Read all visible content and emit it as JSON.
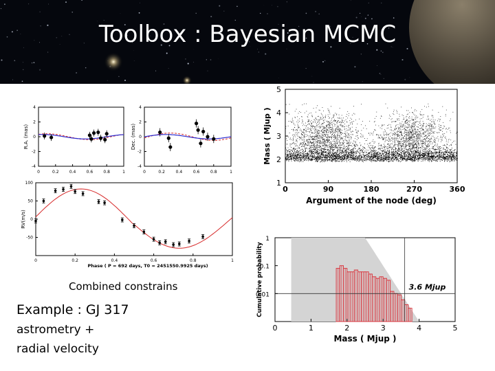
{
  "title": "Toolbox : Bayesian MCMC",
  "captions": {
    "combined": "Combined constrains",
    "example": "Example : GJ 317",
    "astrometry": "astrometry +",
    "radial_velocity": "radial velocity"
  },
  "colors": {
    "banner_bg": "#05070d",
    "fit_red": "#d62828",
    "fit_blue": "#2a2acf",
    "hist_red": "#d9363e",
    "prior_grey": "#d4d4d4"
  },
  "chart_data": [
    {
      "type": "scatter",
      "panel": "ra",
      "ylabel": "R.A. (mas)",
      "xlim": [
        0,
        1
      ],
      "ylim": [
        -4,
        4
      ],
      "xticks": [
        "0",
        "0.2",
        "0.4",
        "0.6",
        "0.8",
        "1"
      ],
      "yticks": [
        "4",
        "2",
        "0",
        "-2",
        "-4"
      ],
      "x": [
        0.07,
        0.15,
        0.6,
        0.62,
        0.65,
        0.7,
        0.73,
        0.78,
        0.8
      ],
      "y": [
        0.1,
        -0.1,
        0.2,
        -0.3,
        0.5,
        0.6,
        -0.2,
        -0.4,
        0.4
      ]
    },
    {
      "type": "scatter",
      "panel": "dec",
      "ylabel": "Dec. (mas)",
      "xlim": [
        0,
        1
      ],
      "ylim": [
        -4,
        4
      ],
      "xticks": [
        "0",
        "0.2",
        "0.4",
        "0.6",
        "0.8",
        "1"
      ],
      "yticks": [
        "4",
        "2",
        "0",
        "-2",
        "-4"
      ],
      "x": [
        0.18,
        0.28,
        0.3,
        0.6,
        0.62,
        0.65,
        0.68,
        0.73,
        0.8
      ],
      "y": [
        0.6,
        -0.2,
        -1.4,
        1.8,
        0.9,
        -0.9,
        0.7,
        0.0,
        -0.3
      ]
    },
    {
      "type": "scatter",
      "panel": "rv",
      "ylabel": "RV(m/s)",
      "xlabel": "Phase ( P = 692 days, T0 = 2451550.9925 days)",
      "xlim": [
        0,
        1
      ],
      "ylim": [
        -100,
        100
      ],
      "xticks": [
        "0",
        "0.2",
        "0.4",
        "0.6",
        "0.8",
        "1"
      ],
      "yticks": [
        "100",
        "50",
        "0",
        "-50"
      ],
      "x": [
        0.0,
        0.04,
        0.1,
        0.14,
        0.18,
        0.2,
        0.24,
        0.32,
        0.35,
        0.44,
        0.5,
        0.55,
        0.6,
        0.63,
        0.66,
        0.7,
        0.73,
        0.78,
        0.85
      ],
      "y": [
        -5,
        50,
        78,
        82,
        90,
        76,
        70,
        48,
        45,
        -2,
        -18,
        -35,
        -55,
        -65,
        -62,
        -70,
        -68,
        -60,
        -48
      ]
    },
    {
      "type": "scatter",
      "panel": "mass_vs_node",
      "ylabel": "Mass ( Mjup )",
      "xlabel": "Argument of the node (deg)",
      "xlim": [
        0,
        360
      ],
      "ylim": [
        1,
        5
      ],
      "xticks": [
        "0",
        "90",
        "180",
        "270",
        "360"
      ],
      "yticks": [
        "5",
        "4",
        "3",
        "2",
        "1"
      ],
      "clusters": [
        {
          "x": 80,
          "y": 2.9
        },
        {
          "x": 265,
          "y": 2.9
        }
      ],
      "floor_mass": 1.9
    },
    {
      "type": "histogram",
      "panel": "cumulative_mass",
      "ylabel": "Cumulative probability",
      "xlabel": "Mass ( Mjup )",
      "xlim": [
        0,
        5
      ],
      "yscale": "log",
      "ylim": [
        0.001,
        1
      ],
      "xticks": [
        "0",
        "1",
        "2",
        "3",
        "4",
        "5"
      ],
      "yticks": [
        "1",
        "0.1",
        "0.01"
      ],
      "annotation": "3.6 Mjup",
      "threshold_mass": 3.6,
      "threshold_prob": 0.01,
      "bin_edges": [
        1.7,
        1.8,
        1.9,
        2.0,
        2.1,
        2.2,
        2.3,
        2.4,
        2.5,
        2.6,
        2.7,
        2.8,
        2.9,
        3.0,
        3.1,
        3.2,
        3.3,
        3.4,
        3.5,
        3.6,
        3.7,
        3.8
      ],
      "bin_values": [
        0.08,
        0.1,
        0.08,
        0.06,
        0.06,
        0.07,
        0.06,
        0.06,
        0.06,
        0.05,
        0.04,
        0.035,
        0.04,
        0.035,
        0.03,
        0.012,
        0.01,
        0.009,
        0.006,
        0.004,
        0.003
      ]
    }
  ]
}
